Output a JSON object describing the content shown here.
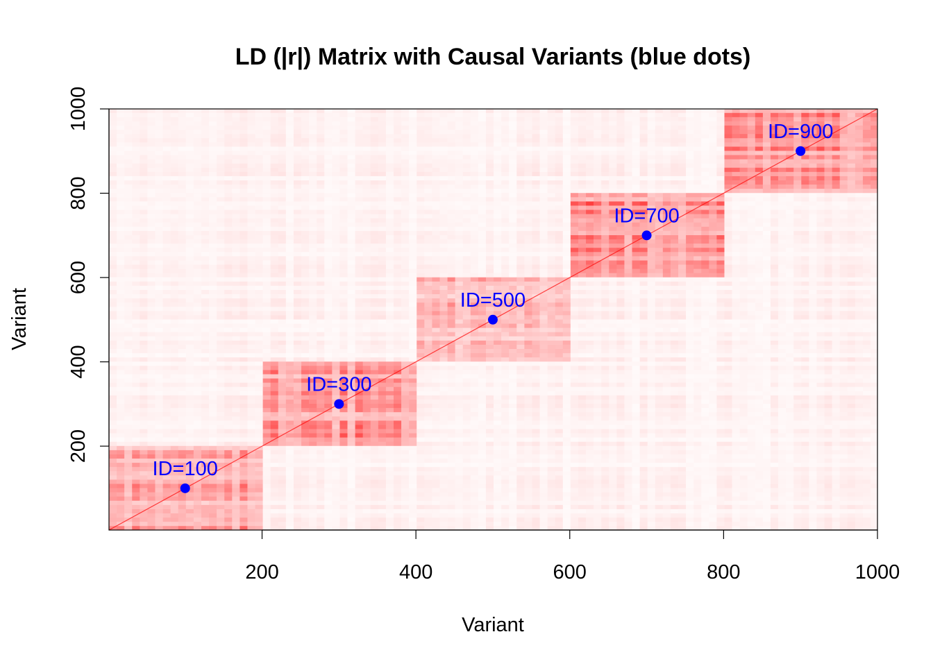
{
  "chart_data": {
    "type": "heatmap",
    "title": "LD (|r|) Matrix with Causal Variants (blue dots)",
    "xlabel": "Variant",
    "ylabel": "Variant",
    "xlim": [
      1,
      1000
    ],
    "ylim": [
      1,
      1000
    ],
    "x_ticks": [
      200,
      400,
      600,
      800,
      1000
    ],
    "y_ticks": [
      200,
      400,
      600,
      800,
      1000
    ],
    "color_low": "#ffffff",
    "color_high": "#ff0000",
    "blocks": [
      {
        "start": 1,
        "end": 200,
        "mean_abs_r": 0.45
      },
      {
        "start": 201,
        "end": 400,
        "mean_abs_r": 0.5
      },
      {
        "start": 401,
        "end": 600,
        "mean_abs_r": 0.35
      },
      {
        "start": 601,
        "end": 800,
        "mean_abs_r": 0.6
      },
      {
        "start": 801,
        "end": 1000,
        "mean_abs_r": 0.55
      }
    ],
    "background_abs_r": 0.06,
    "causal_variants": [
      {
        "id": 100,
        "label": "ID=100"
      },
      {
        "id": 300,
        "label": "ID=300"
      },
      {
        "id": 500,
        "label": "ID=500"
      },
      {
        "id": 700,
        "label": "ID=700"
      },
      {
        "id": 900,
        "label": "ID=900"
      }
    ],
    "point_color": "#0000ff"
  }
}
